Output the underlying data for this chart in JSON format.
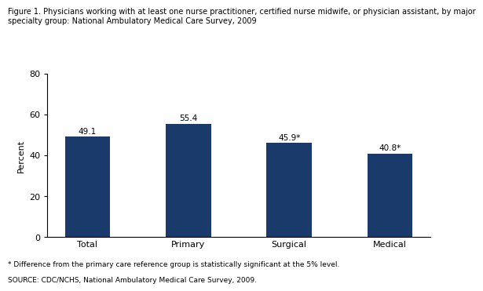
{
  "title_line1": "Figure 1. Physicians working with at least one nurse practitioner, certified nurse midwife, or physician assistant, by major",
  "title_line2": "specialty group: National Ambulatory Medical Care Survey, 2009",
  "categories": [
    "Total",
    "Primary",
    "Surgical",
    "Medical"
  ],
  "values": [
    49.1,
    55.4,
    45.9,
    40.8
  ],
  "labels": [
    "49.1",
    "55.4",
    "45.9*",
    "40.8*"
  ],
  "bar_color": "#1a3a6b",
  "ylabel": "Percent",
  "ylim": [
    0,
    80
  ],
  "yticks": [
    0,
    20,
    40,
    60,
    80
  ],
  "footnote1": "* Difference from the primary care reference group is statistically significant at the 5% level.",
  "footnote2": "SOURCE: CDC/NCHS, National Ambulatory Medical Care Survey, 2009.",
  "title_fontsize": 7.0,
  "axis_fontsize": 8,
  "label_fontsize": 7.5,
  "footnote_fontsize": 6.5,
  "bar_width": 0.45
}
